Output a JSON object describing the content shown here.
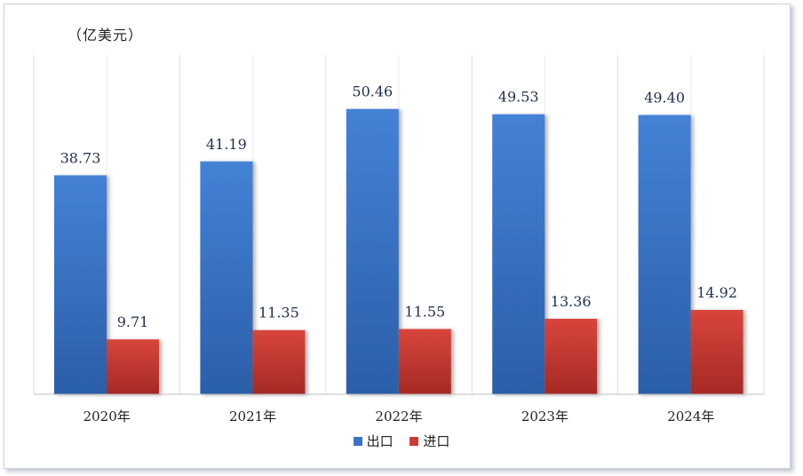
{
  "chart_data": {
    "type": "bar",
    "unit_label": "（亿美元）",
    "categories": [
      "2020年",
      "2021年",
      "2022年",
      "2023年",
      "2024年"
    ],
    "series": [
      {
        "name": "出口",
        "values": [
          38.73,
          41.19,
          50.46,
          49.53,
          49.4
        ],
        "labels": [
          "38.73",
          "41.19",
          "50.46",
          "49.53",
          "49.40"
        ],
        "color": "#3a74c6"
      },
      {
        "name": "进口",
        "values": [
          9.71,
          11.35,
          11.55,
          13.36,
          14.92
        ],
        "labels": [
          "9.71",
          "11.35",
          "11.55",
          "13.36",
          "14.92"
        ],
        "color": "#cc3b33"
      }
    ],
    "ylim": [
      0,
      60
    ],
    "grid": "vertical",
    "legend_position": "bottom"
  }
}
